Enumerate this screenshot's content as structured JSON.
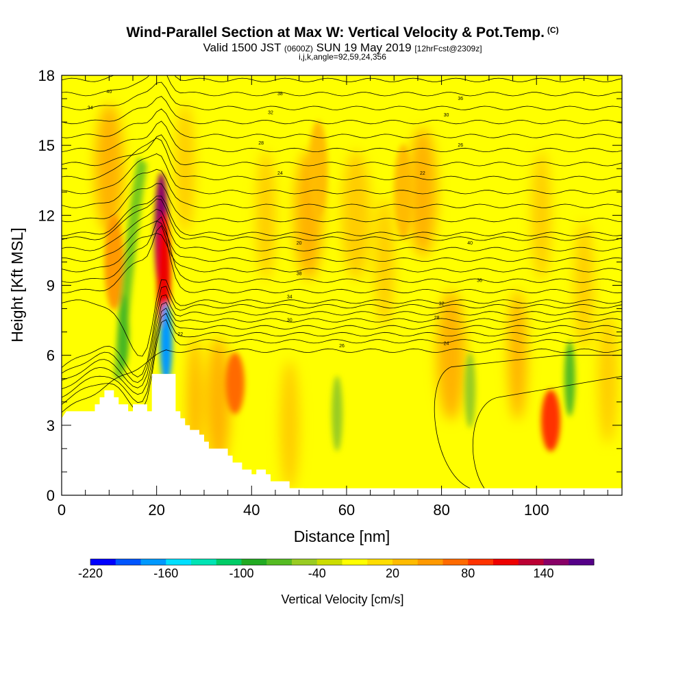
{
  "header": {
    "title": "Wind-Parallel Section at Max W: Vertical Velocity & Pot.Temp.",
    "copyright": "(C)",
    "valid_prefix": "Valid 1500 JST",
    "valid_utc": "(0600Z)",
    "valid_date": "SUN 19 May 2019",
    "forecast": "[12hrFcst@2309z]",
    "params": "i,j,k,angle=92,59,24,356"
  },
  "chart_data": {
    "type": "heatmap",
    "xlabel": "Distance [nm]",
    "ylabel": "Height [Kft MSL]",
    "xlim": [
      0,
      118
    ],
    "ylim": [
      0,
      18
    ],
    "x_ticks": [
      0,
      20,
      40,
      60,
      80,
      100
    ],
    "y_ticks": [
      0,
      3,
      6,
      9,
      12,
      15,
      18
    ],
    "colorbar": {
      "label": "Vertical Velocity [cm/s]",
      "tick_labels": [
        "-220",
        "-160",
        "-100",
        "-40",
        "20",
        "80",
        "140"
      ],
      "tick_values": [
        -220,
        -160,
        -100,
        -40,
        20,
        80,
        140
      ],
      "range": [
        -220,
        180
      ],
      "colors": [
        "#0000ff",
        "#0055ff",
        "#0099ff",
        "#00dfff",
        "#00e4b4",
        "#00cc66",
        "#22aa22",
        "#55bb22",
        "#99cc22",
        "#ccdd00",
        "#ffff00",
        "#ffdd00",
        "#ffbb00",
        "#ff9900",
        "#ff6a00",
        "#ff3300",
        "#ee0000",
        "#bb0033",
        "#880066",
        "#550088"
      ]
    },
    "terrain": [
      [
        0,
        3.3
      ],
      [
        1,
        3.6
      ],
      [
        7,
        3.6
      ],
      [
        7,
        3.9
      ],
      [
        8,
        3.9
      ],
      [
        8,
        4.2
      ],
      [
        9,
        4.2
      ],
      [
        9,
        4.5
      ],
      [
        11,
        4.5
      ],
      [
        11,
        4.2
      ],
      [
        12,
        4.2
      ],
      [
        12,
        3.9
      ],
      [
        14,
        3.9
      ],
      [
        14,
        3.6
      ],
      [
        15,
        3.6
      ],
      [
        15,
        3.9
      ],
      [
        18,
        3.9
      ],
      [
        18,
        3.6
      ],
      [
        19,
        3.6
      ],
      [
        19,
        5.2
      ],
      [
        24,
        5.2
      ],
      [
        24,
        3.6
      ],
      [
        25,
        3.6
      ],
      [
        25,
        3.3
      ],
      [
        26,
        3.3
      ],
      [
        26,
        3.0
      ],
      [
        27,
        3.0
      ],
      [
        27,
        2.8
      ],
      [
        29,
        2.8
      ],
      [
        29,
        2.6
      ],
      [
        30,
        2.6
      ],
      [
        30,
        2.3
      ],
      [
        31,
        2.3
      ],
      [
        31,
        2.0
      ],
      [
        35,
        2.0
      ],
      [
        35,
        1.7
      ],
      [
        36,
        1.7
      ],
      [
        36,
        1.4
      ],
      [
        38,
        1.4
      ],
      [
        38,
        1.1
      ],
      [
        40,
        1.1
      ],
      [
        40,
        0.9
      ],
      [
        41,
        0.9
      ],
      [
        41,
        1.1
      ],
      [
        43,
        1.1
      ],
      [
        43,
        0.9
      ],
      [
        44,
        0.9
      ],
      [
        44,
        0.6
      ],
      [
        48,
        0.6
      ],
      [
        48,
        0.3
      ],
      [
        51,
        0.3
      ],
      [
        51,
        0
      ]
    ],
    "updraft_cells": [
      {
        "x": 21,
        "z": 11.2,
        "value": 150
      },
      {
        "x": 21.5,
        "z": 9.5,
        "value": 110
      },
      {
        "x": 36.5,
        "z": 4.8,
        "value": 70
      },
      {
        "x": 103,
        "z": 3.2,
        "value": 90
      },
      {
        "x": 11,
        "z": 10,
        "value": 40
      },
      {
        "x": 54,
        "z": 14,
        "value": 35
      },
      {
        "x": 72,
        "z": 13,
        "value": 35
      }
    ],
    "downdraft_cells": [
      {
        "x": 22,
        "z": 6.5,
        "value": -170
      },
      {
        "x": 13,
        "z": 7,
        "value": -100
      },
      {
        "x": 58,
        "z": 3.5,
        "value": -60
      },
      {
        "x": 86,
        "z": 4.5,
        "value": -60
      },
      {
        "x": 107,
        "z": 5,
        "value": -70
      }
    ],
    "theta_labels": [
      "40",
      "38",
      "36",
      "34",
      "32",
      "30",
      "28",
      "26",
      "24",
      "22",
      "20"
    ]
  }
}
